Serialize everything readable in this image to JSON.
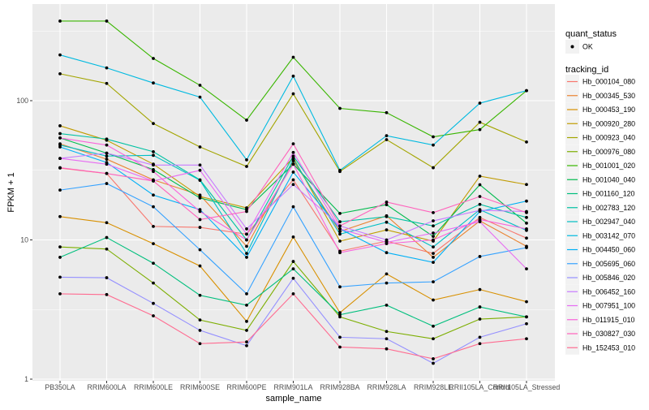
{
  "chart_data": {
    "type": "line",
    "xlabel": "sample_name",
    "ylabel": "FPKM + 1",
    "yscale": "log10",
    "ylim": [
      1,
      490
    ],
    "yticks": [
      1,
      10,
      100
    ],
    "ytick_labels": [
      "1",
      "10",
      "100"
    ],
    "grid": true,
    "points_marked": true,
    "legend_placement": "right",
    "categories": [
      "PB350LA",
      "RRIM600LA",
      "RRIM600LE",
      "RRIM600SE",
      "RRIM600PE",
      "RRIM901LA",
      "RRIM928BA",
      "RRIM928LA",
      "RRIM928LE",
      "RRII105LA_Control",
      "RRII105LA_Stressed"
    ],
    "legend_shape": {
      "title": "quant_status",
      "entries": [
        "OK"
      ]
    },
    "legend_color_title": "tracking_id",
    "series": [
      {
        "name": "Hb_000104_080",
        "color": "#F8766D",
        "values": [
          32.8,
          30,
          12.5,
          12.3,
          11,
          27,
          8.3,
          9.8,
          8,
          14.5,
          10.3
        ]
      },
      {
        "name": "Hb_000345_530",
        "color": "#EA8331",
        "values": [
          49,
          38,
          27,
          21,
          9,
          37,
          11.5,
          14.9,
          7.5,
          13.7,
          9
        ]
      },
      {
        "name": "Hb_000453_190",
        "color": "#D89000",
        "values": [
          14.7,
          13.3,
          9.4,
          6.5,
          2.6,
          10.5,
          3.0,
          5.7,
          3.7,
          4.4,
          3.6
        ]
      },
      {
        "name": "Hb_000920_280",
        "color": "#C09B00",
        "values": [
          66,
          52,
          35,
          20.5,
          17,
          39,
          9.8,
          11.8,
          9.8,
          28.7,
          25
        ]
      },
      {
        "name": "Hb_000923_040",
        "color": "#A3A500",
        "values": [
          156,
          133,
          68.5,
          46.5,
          33.7,
          112,
          31,
          52.5,
          33,
          70,
          50.5
        ]
      },
      {
        "name": "Hb_000976_080",
        "color": "#7CAE00",
        "values": [
          8.9,
          8.6,
          4.9,
          2.66,
          2.24,
          7.0,
          2.8,
          2.2,
          1.95,
          2.7,
          2.8
        ]
      },
      {
        "name": "Hb_001001_020",
        "color": "#39B600",
        "values": [
          373,
          373,
          201,
          129,
          72.5,
          205,
          88,
          82,
          55,
          62,
          118
        ]
      },
      {
        "name": "Hb_001040_040",
        "color": "#00BB4E",
        "values": [
          54,
          42,
          32,
          20,
          16.5,
          35,
          15.5,
          17.9,
          10.6,
          24.9,
          13.2
        ]
      },
      {
        "name": "Hb_001160_120",
        "color": "#00BF7D",
        "values": [
          7.5,
          10.4,
          6.8,
          4.0,
          3.4,
          6.2,
          2.9,
          3.4,
          2.4,
          3.3,
          2.8
        ]
      },
      {
        "name": "Hb_002783_120",
        "color": "#00C1A3",
        "values": [
          58,
          53,
          43,
          27,
          10,
          40,
          13.5,
          14.7,
          12.6,
          18,
          14.5
        ]
      },
      {
        "name": "Hb_002947_040",
        "color": "#00BFC4",
        "values": [
          48,
          40,
          40.5,
          26.8,
          8,
          38,
          11,
          13.4,
          8.9,
          16.5,
          11.7
        ]
      },
      {
        "name": "Hb_003142_070",
        "color": "#00BAE0",
        "values": [
          213,
          172,
          134,
          106,
          37.6,
          150,
          31.6,
          56,
          48,
          96,
          118
        ]
      },
      {
        "name": "Hb_004450_060",
        "color": "#00B0F6",
        "values": [
          46.5,
          36,
          21,
          16.5,
          7.5,
          30.7,
          12,
          8.1,
          6.9,
          16,
          19
        ]
      },
      {
        "name": "Hb_005695_060",
        "color": "#35A2FF",
        "values": [
          22.8,
          25.4,
          17.3,
          8.5,
          4.1,
          17.3,
          4.6,
          4.9,
          5.0,
          7.6,
          8.8
        ]
      },
      {
        "name": "Hb_005846_020",
        "color": "#9590FF",
        "values": [
          5.4,
          5.35,
          3.5,
          2.24,
          1.74,
          5.3,
          2.0,
          1.95,
          1.3,
          2.0,
          2.5
        ]
      },
      {
        "name": "Hb_006452_160",
        "color": "#C77CFF",
        "values": [
          38.5,
          42,
          34.5,
          34.5,
          12,
          25,
          12.6,
          10,
          13.7,
          16.3,
          16
        ]
      },
      {
        "name": "Hb_007951_100",
        "color": "#E76BF3",
        "values": [
          38.5,
          35,
          26.5,
          31.6,
          11,
          42.5,
          12,
          9.6,
          11.2,
          13.5,
          6.2
        ]
      },
      {
        "name": "Hb_011915_010",
        "color": "#FA62DB",
        "values": [
          54,
          48,
          31,
          16,
          10,
          35,
          8.1,
          9.4,
          10,
          14,
          12
        ]
      },
      {
        "name": "Hb_030827_030",
        "color": "#FF62BC",
        "values": [
          33,
          30,
          26.5,
          14,
          16,
          49,
          12.6,
          18.7,
          15.7,
          20.5,
          15.7
        ]
      },
      {
        "name": "Hb_152453_010",
        "color": "#FF6C91",
        "values": [
          4.1,
          4.05,
          2.85,
          1.8,
          1.85,
          4.1,
          1.7,
          1.65,
          1.4,
          1.8,
          1.95
        ]
      }
    ]
  }
}
